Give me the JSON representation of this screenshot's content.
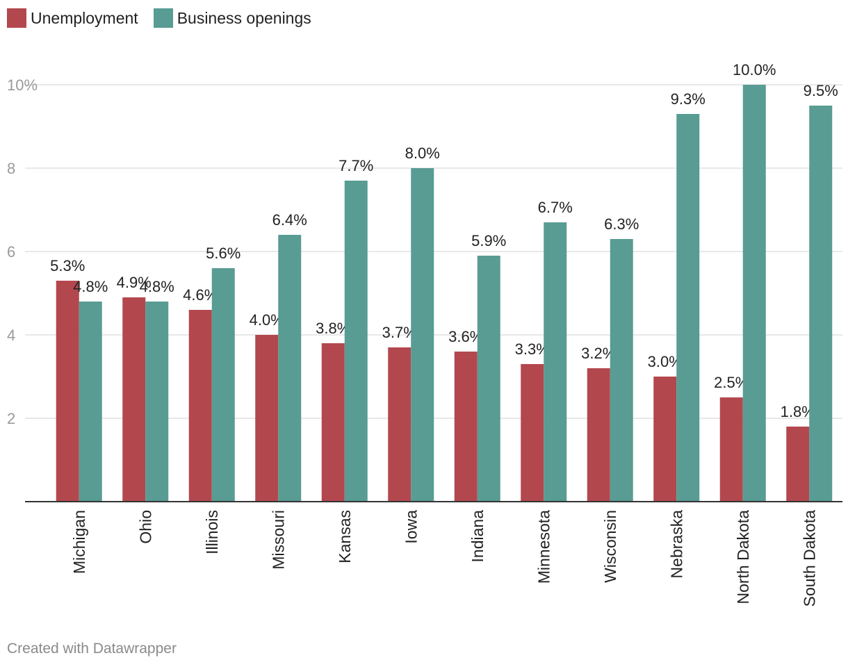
{
  "chart_data": {
    "type": "bar",
    "title": "",
    "xlabel": "",
    "ylabel": "",
    "categories": [
      "Michigan",
      "Ohio",
      "Illinois",
      "Missouri",
      "Kansas",
      "Iowa",
      "Indiana",
      "Minnesota",
      "Wisconsin",
      "Nebraska",
      "North Dakota",
      "South Dakota"
    ],
    "series": [
      {
        "name": "Unemployment",
        "color": "#b3474e",
        "values": [
          5.3,
          4.9,
          4.6,
          4.0,
          3.8,
          3.7,
          3.6,
          3.3,
          3.2,
          3.0,
          2.5,
          1.8
        ],
        "labels": [
          "5.3%",
          "4.9%",
          "4.6%",
          "4.0%",
          "3.8%",
          "3.7%",
          "3.6%",
          "3.3%",
          "3.2%",
          "3.0%",
          "2.5%",
          "1.8%"
        ]
      },
      {
        "name": "Business openings",
        "color": "#589c93",
        "values": [
          4.8,
          4.8,
          5.6,
          6.4,
          7.7,
          8.0,
          5.9,
          6.7,
          6.3,
          9.3,
          10.0,
          9.5
        ],
        "labels": [
          "4.8%",
          "4.8%",
          "5.6%",
          "6.4%",
          "7.7%",
          "8.0%",
          "5.9%",
          "6.7%",
          "6.3%",
          "9.3%",
          "10.0%",
          "9.5%"
        ]
      }
    ],
    "ylim": [
      0,
      10
    ],
    "y_ticks": [
      {
        "value": 2,
        "label": "2"
      },
      {
        "value": 4,
        "label": "4"
      },
      {
        "value": 6,
        "label": "6"
      },
      {
        "value": 8,
        "label": "8"
      },
      {
        "value": 10,
        "label": "10%"
      }
    ],
    "grid": true,
    "legend_position": "top-left"
  },
  "footer": {
    "credit": "Created with Datawrapper"
  }
}
